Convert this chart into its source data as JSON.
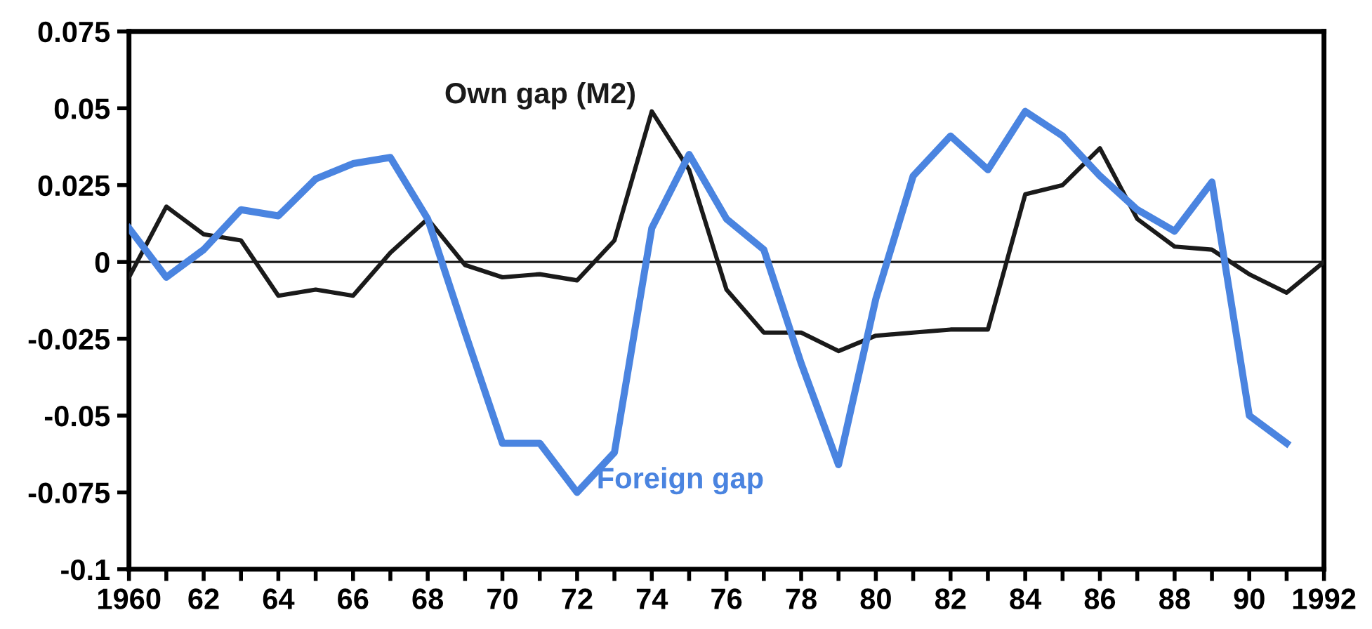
{
  "chart_data": {
    "type": "line",
    "x": [
      1960,
      1961,
      1962,
      1963,
      1964,
      1965,
      1966,
      1967,
      1968,
      1969,
      1970,
      1971,
      1972,
      1973,
      1974,
      1975,
      1976,
      1977,
      1978,
      1979,
      1980,
      1981,
      1982,
      1983,
      1984,
      1985,
      1986,
      1987,
      1988,
      1989,
      1990,
      1991,
      1992
    ],
    "series": [
      {
        "name": "Own gap (M2)",
        "color": "#1a1a1a",
        "values": [
          -0.005,
          0.018,
          0.009,
          0.007,
          -0.011,
          -0.009,
          -0.011,
          0.003,
          0.014,
          -0.001,
          -0.005,
          -0.004,
          -0.006,
          0.007,
          0.049,
          0.03,
          -0.009,
          -0.023,
          -0.023,
          -0.029,
          -0.024,
          -0.023,
          -0.022,
          -0.022,
          0.022,
          0.025,
          0.037,
          0.014,
          0.005,
          0.004,
          -0.004,
          -0.01,
          0
        ]
      },
      {
        "name": "Foreign gap",
        "color": "#4a84e0",
        "values": [
          0.011,
          -0.005,
          0.004,
          0.017,
          0.015,
          0.027,
          0.032,
          0.034,
          0.014,
          -0.023,
          -0.059,
          -0.059,
          -0.075,
          -0.062,
          0.011,
          0.035,
          0.014,
          0.004,
          -0.033,
          -0.066,
          -0.012,
          0.028,
          0.041,
          0.03,
          0.049,
          0.041,
          0.028,
          0.017,
          0.01,
          0.026,
          -0.05,
          -0.059,
          null
        ]
      }
    ],
    "xlim": [
      1960,
      1992
    ],
    "xticks": [
      {
        "value": 1960,
        "label": "1960"
      },
      {
        "value": 1961,
        "label": null
      },
      {
        "value": 1962,
        "label": "62"
      },
      {
        "value": 1963,
        "label": null
      },
      {
        "value": 1964,
        "label": "64"
      },
      {
        "value": 1965,
        "label": null
      },
      {
        "value": 1966,
        "label": "66"
      },
      {
        "value": 1967,
        "label": null
      },
      {
        "value": 1968,
        "label": "68"
      },
      {
        "value": 1969,
        "label": null
      },
      {
        "value": 1970,
        "label": "70"
      },
      {
        "value": 1971,
        "label": null
      },
      {
        "value": 1972,
        "label": "72"
      },
      {
        "value": 1973,
        "label": null
      },
      {
        "value": 1974,
        "label": "74"
      },
      {
        "value": 1975,
        "label": null
      },
      {
        "value": 1976,
        "label": "76"
      },
      {
        "value": 1977,
        "label": null
      },
      {
        "value": 1978,
        "label": "78"
      },
      {
        "value": 1979,
        "label": null
      },
      {
        "value": 1980,
        "label": "80"
      },
      {
        "value": 1981,
        "label": null
      },
      {
        "value": 1982,
        "label": "82"
      },
      {
        "value": 1983,
        "label": null
      },
      {
        "value": 1984,
        "label": "84"
      },
      {
        "value": 1985,
        "label": null
      },
      {
        "value": 1986,
        "label": "86"
      },
      {
        "value": 1987,
        "label": null
      },
      {
        "value": 1988,
        "label": "88"
      },
      {
        "value": 1989,
        "label": null
      },
      {
        "value": 1990,
        "label": "90"
      },
      {
        "value": 1991,
        "label": null
      },
      {
        "value": 1992,
        "label": "1992"
      }
    ],
    "ylim": [
      -0.1,
      0.075
    ],
    "yticks": [
      -0.1,
      -0.075,
      -0.05,
      -0.025,
      0,
      0.025,
      0.05,
      0.075
    ],
    "ref_lines": [
      {
        "axis": "y",
        "value": 0,
        "label": null,
        "color": "#1a1a1a"
      }
    ],
    "grid": false,
    "legend": false,
    "marker": "none",
    "line_style": "solid"
  }
}
